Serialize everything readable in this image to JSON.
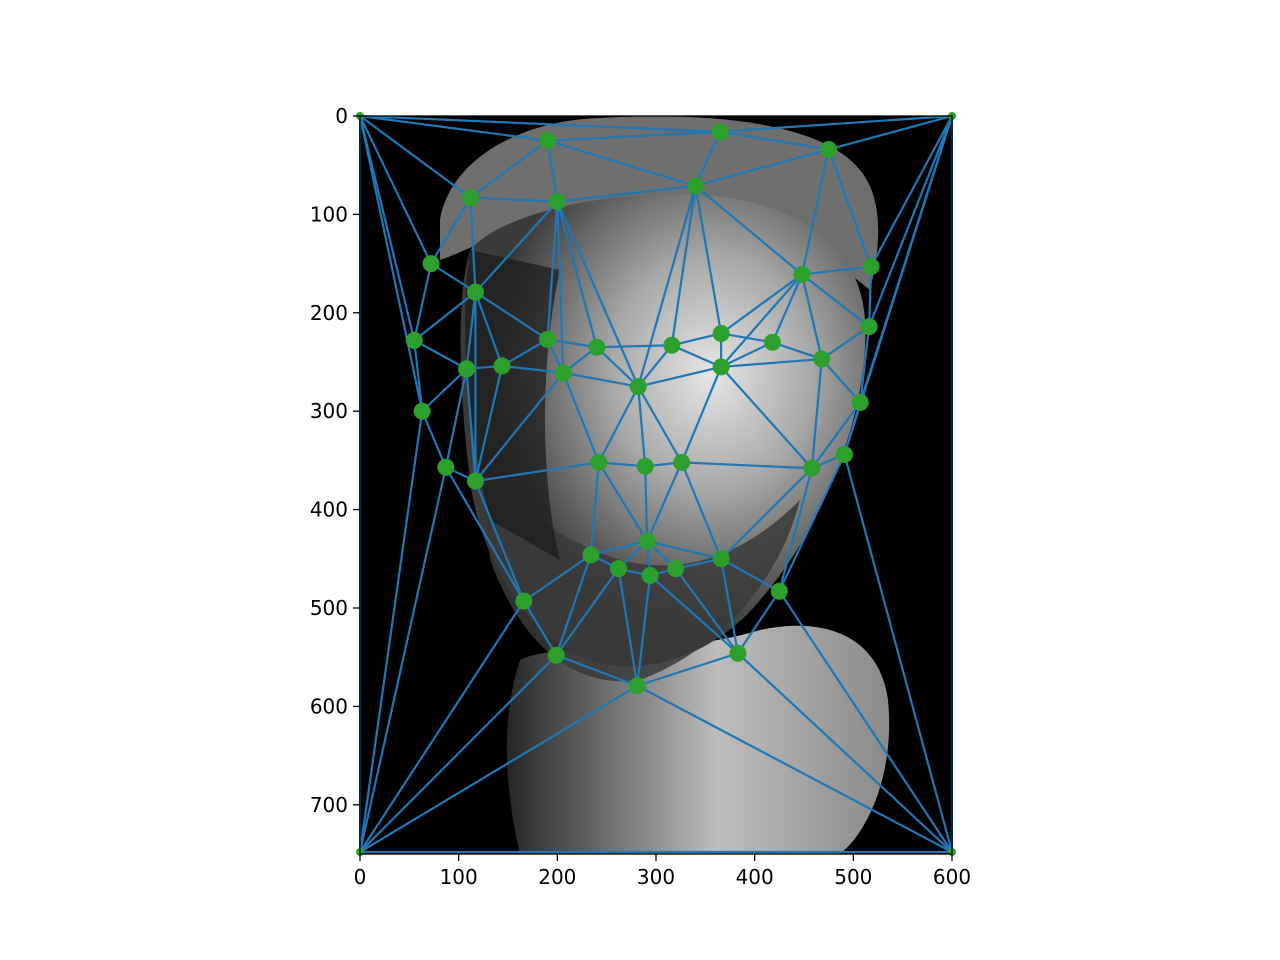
{
  "chart_data": {
    "type": "scatter",
    "title": "",
    "xlabel": "",
    "ylabel": "",
    "xlim": [
      0,
      600
    ],
    "ylim": [
      750,
      0
    ],
    "y_axis_inverted": true,
    "grid": false,
    "legend": "none",
    "background": "grayscale face photograph (dark background)",
    "x_ticks": [
      0,
      100,
      200,
      300,
      400,
      500,
      600
    ],
    "y_ticks": [
      0,
      100,
      200,
      300,
      400,
      500,
      600,
      700
    ],
    "line_color": "#1f77b4",
    "point_color": "#2ca02c",
    "points": [
      [
        0,
        0
      ],
      [
        600,
        0
      ],
      [
        600,
        748
      ],
      [
        0,
        748
      ],
      [
        190,
        25
      ],
      [
        365,
        16
      ],
      [
        475,
        34
      ],
      [
        112,
        83
      ],
      [
        200,
        87
      ],
      [
        340,
        71
      ],
      [
        72,
        150
      ],
      [
        117,
        179
      ],
      [
        448,
        161
      ],
      [
        518,
        153
      ],
      [
        55,
        228
      ],
      [
        190,
        227
      ],
      [
        240,
        235
      ],
      [
        316,
        233
      ],
      [
        366,
        221
      ],
      [
        418,
        230
      ],
      [
        516,
        214
      ],
      [
        108,
        257
      ],
      [
        144,
        254
      ],
      [
        206,
        261
      ],
      [
        282,
        275
      ],
      [
        366,
        255
      ],
      [
        468,
        247
      ],
      [
        63,
        300
      ],
      [
        507,
        291
      ],
      [
        87,
        357
      ],
      [
        117,
        371
      ],
      [
        242,
        352
      ],
      [
        289,
        356
      ],
      [
        326,
        352
      ],
      [
        458,
        358
      ],
      [
        491,
        344
      ],
      [
        234,
        446
      ],
      [
        291,
        432
      ],
      [
        262,
        460
      ],
      [
        294,
        467
      ],
      [
        320,
        460
      ],
      [
        366,
        450
      ],
      [
        166,
        493
      ],
      [
        425,
        483
      ],
      [
        199,
        548
      ],
      [
        383,
        546
      ],
      [
        281,
        579
      ]
    ],
    "edges": [
      [
        0,
        4
      ],
      [
        0,
        5
      ],
      [
        0,
        7
      ],
      [
        0,
        10
      ],
      [
        0,
        14
      ],
      [
        0,
        27
      ],
      [
        0,
        3
      ],
      [
        4,
        5
      ],
      [
        4,
        7
      ],
      [
        4,
        8
      ],
      [
        4,
        9
      ],
      [
        5,
        9
      ],
      [
        5,
        6
      ],
      [
        5,
        1
      ],
      [
        6,
        1
      ],
      [
        6,
        9
      ],
      [
        6,
        12
      ],
      [
        6,
        13
      ],
      [
        7,
        8
      ],
      [
        7,
        10
      ],
      [
        7,
        11
      ],
      [
        8,
        9
      ],
      [
        8,
        11
      ],
      [
        8,
        15
      ],
      [
        8,
        16
      ],
      [
        8,
        24
      ],
      [
        8,
        23
      ],
      [
        9,
        17
      ],
      [
        9,
        24
      ],
      [
        9,
        18
      ],
      [
        9,
        12
      ],
      [
        10,
        11
      ],
      [
        10,
        14
      ],
      [
        11,
        14
      ],
      [
        11,
        21
      ],
      [
        11,
        22
      ],
      [
        11,
        15
      ],
      [
        11,
        30
      ],
      [
        12,
        13
      ],
      [
        12,
        18
      ],
      [
        12,
        19
      ],
      [
        12,
        26
      ],
      [
        12,
        20
      ],
      [
        12,
        25
      ],
      [
        13,
        1
      ],
      [
        13,
        20
      ],
      [
        14,
        21
      ],
      [
        14,
        27
      ],
      [
        15,
        22
      ],
      [
        15,
        16
      ],
      [
        15,
        23
      ],
      [
        16,
        17
      ],
      [
        16,
        23
      ],
      [
        16,
        24
      ],
      [
        17,
        24
      ],
      [
        17,
        18
      ],
      [
        17,
        25
      ],
      [
        18,
        25
      ],
      [
        18,
        19
      ],
      [
        19,
        26
      ],
      [
        19,
        25
      ],
      [
        20,
        26
      ],
      [
        20,
        28
      ],
      [
        20,
        1
      ],
      [
        21,
        22
      ],
      [
        21,
        27
      ],
      [
        21,
        29
      ],
      [
        21,
        30
      ],
      [
        22,
        30
      ],
      [
        22,
        23
      ],
      [
        23,
        24
      ],
      [
        23,
        31
      ],
      [
        23,
        30
      ],
      [
        24,
        31
      ],
      [
        24,
        32
      ],
      [
        24,
        33
      ],
      [
        24,
        25
      ],
      [
        25,
        33
      ],
      [
        25,
        34
      ],
      [
        25,
        26
      ],
      [
        26,
        34
      ],
      [
        26,
        28
      ],
      [
        27,
        29
      ],
      [
        27,
        3
      ],
      [
        28,
        34
      ],
      [
        28,
        35
      ],
      [
        28,
        1
      ],
      [
        29,
        30
      ],
      [
        29,
        42
      ],
      [
        29,
        3
      ],
      [
        30,
        31
      ],
      [
        30,
        42
      ],
      [
        31,
        32
      ],
      [
        31,
        36
      ],
      [
        31,
        37
      ],
      [
        32,
        37
      ],
      [
        32,
        33
      ],
      [
        33,
        37
      ],
      [
        33,
        41
      ],
      [
        33,
        34
      ],
      [
        34,
        41
      ],
      [
        34,
        43
      ],
      [
        34,
        35
      ],
      [
        35,
        43
      ],
      [
        35,
        1
      ],
      [
        35,
        2
      ],
      [
        36,
        37
      ],
      [
        36,
        38
      ],
      [
        36,
        42
      ],
      [
        36,
        44
      ],
      [
        37,
        38
      ],
      [
        37,
        39
      ],
      [
        37,
        40
      ],
      [
        37,
        41
      ],
      [
        38,
        39
      ],
      [
        38,
        44
      ],
      [
        38,
        46
      ],
      [
        39,
        46
      ],
      [
        39,
        40
      ],
      [
        39,
        45
      ],
      [
        40,
        41
      ],
      [
        40,
        45
      ],
      [
        41,
        45
      ],
      [
        41,
        43
      ],
      [
        42,
        44
      ],
      [
        42,
        3
      ],
      [
        43,
        45
      ],
      [
        43,
        2
      ],
      [
        44,
        46
      ],
      [
        44,
        3
      ],
      [
        45,
        46
      ],
      [
        45,
        2
      ],
      [
        46,
        3
      ],
      [
        46,
        2
      ],
      [
        1,
        2
      ],
      [
        3,
        2
      ]
    ]
  }
}
